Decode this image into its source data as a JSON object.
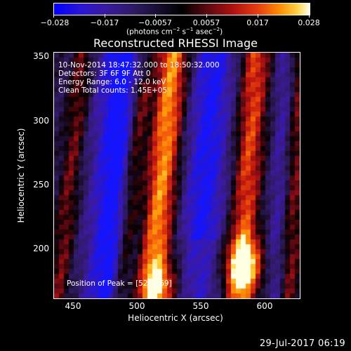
{
  "colorbar": {
    "ticks": [
      "−0.028",
      "−0.017",
      "−0.0057",
      "0.0057",
      "0.017",
      "0.028"
    ],
    "units": "(photons cm",
    "units_exp1": "−2",
    "units_mid": " s",
    "units_exp2": "−1",
    "units_mid2": " asec",
    "units_exp3": "−2",
    "units_end": ")"
  },
  "title": "Reconstructed RHESSI Image",
  "annotations": {
    "time_range": "10-Nov-2014 18:47:32.000 to 18:50:32.000",
    "detectors": "Detectors: 3F 6F 9F  Att 0",
    "energy": "Energy Range: 6.0 - 12.0 keV",
    "clean": "Clean     Total counts: 1.45E+05",
    "peak": "Position of Peak = [525,169]"
  },
  "axes": {
    "xlabel": "Heliocentric X (arcsec)",
    "ylabel": "Heliocentric Y (arcsec)",
    "xticks": [
      "450",
      "500",
      "550",
      "600"
    ],
    "yticks": [
      "350",
      "300",
      "250",
      "200"
    ]
  },
  "footer": "29-Jul-2017 06:19",
  "colors": {
    "background": "#000000",
    "text": "#ffffff"
  }
}
